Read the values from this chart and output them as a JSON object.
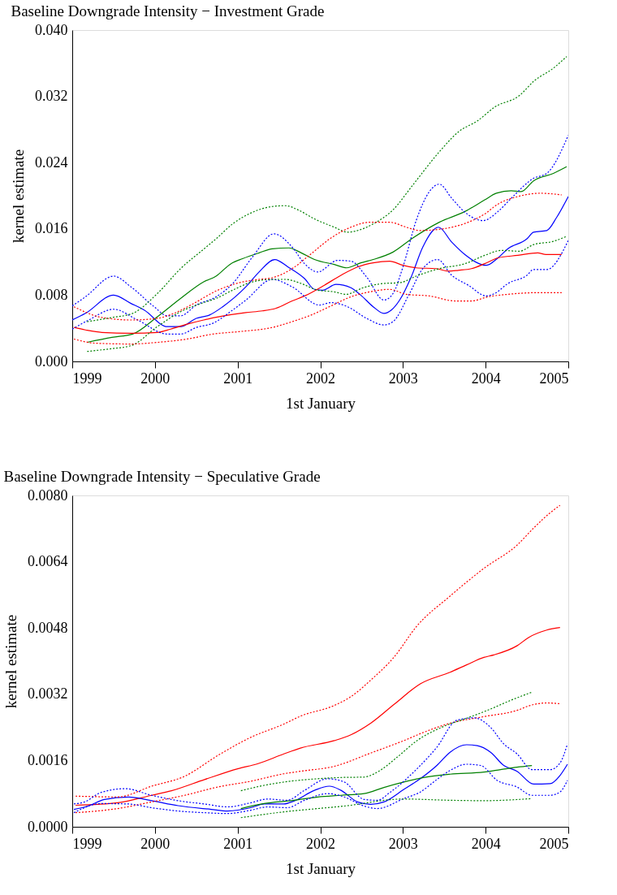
{
  "chart_data": [
    {
      "type": "line",
      "title": "Baseline Downgrade Intensity − Investment Grade",
      "xlabel": "1st January",
      "ylabel": "kernel estimate",
      "xlim": [
        1999,
        2005
      ],
      "xticks": [
        1999,
        2000,
        2001,
        2002,
        2003,
        2004,
        2005
      ],
      "ylim": [
        0,
        0.04
      ],
      "yticks": [
        {
          "value": 0,
          "label": "0.000"
        },
        {
          "value": 0.008,
          "label": "0.008"
        },
        {
          "value": 0.016,
          "label": "0.016"
        },
        {
          "value": 0.024,
          "label": "0.024"
        },
        {
          "value": 0.032,
          "label": "0.032"
        },
        {
          "value": 0.04,
          "label": "0.040"
        }
      ],
      "grid": false,
      "legend": false,
      "marker": "none",
      "series": [
        {
          "color": "#0000ff",
          "line_style": "solid",
          "x": [
            1999.0,
            1999.16,
            1999.5,
            1999.71,
            1999.87,
            2000.15,
            2000.31,
            2000.5,
            2000.66,
            2000.82,
            2001.1,
            2001.26,
            2001.45,
            2001.61,
            2001.81,
            2001.93,
            2002.03,
            2002.19,
            2002.37,
            2002.49,
            2002.64,
            2002.77,
            2002.86,
            2002.96,
            2003.1,
            2003.24,
            2003.43,
            2003.59,
            2003.75,
            2004.01,
            2004.15,
            2004.27,
            2004.5,
            2004.58,
            2004.74,
            2004.86,
            2005.0
          ],
          "values": [
            0.005,
            0.0058,
            0.008,
            0.007,
            0.0062,
            0.0042,
            0.0042,
            0.0052,
            0.0056,
            0.0066,
            0.009,
            0.0108,
            0.0123,
            0.0114,
            0.01,
            0.0087,
            0.0086,
            0.0093,
            0.0089,
            0.008,
            0.0066,
            0.0058,
            0.0062,
            0.0074,
            0.0102,
            0.0138,
            0.0162,
            0.0144,
            0.0129,
            0.0116,
            0.0125,
            0.0136,
            0.0148,
            0.0156,
            0.0158,
            0.0174,
            0.0199
          ]
        },
        {
          "color": "#0000ff",
          "line_style": "dotted",
          "x": [
            1999.0,
            1999.16,
            1999.5,
            1999.71,
            1999.99,
            2000.15,
            2000.31,
            2000.5,
            2000.74,
            2000.94,
            2001.18,
            2001.44,
            2001.66,
            2001.81,
            2001.97,
            2002.21,
            2002.37,
            2002.56,
            2002.77,
            2002.88,
            2003.0,
            2003.16,
            2003.32,
            2003.44,
            2003.59,
            2003.75,
            2003.97,
            2004.15,
            2004.31,
            2004.58,
            2004.74,
            2005.0
          ],
          "values": [
            0.0067,
            0.0078,
            0.0103,
            0.009,
            0.0066,
            0.0055,
            0.0055,
            0.0068,
            0.0078,
            0.0094,
            0.0126,
            0.0154,
            0.0138,
            0.0118,
            0.0108,
            0.0122,
            0.0121,
            0.0102,
            0.0074,
            0.0082,
            0.0114,
            0.017,
            0.0205,
            0.0214,
            0.0197,
            0.018,
            0.017,
            0.0181,
            0.0197,
            0.0221,
            0.0227,
            0.0273
          ]
        },
        {
          "color": "#0000ff",
          "line_style": "dotted",
          "x": [
            1999.0,
            1999.2,
            1999.5,
            1999.79,
            2000.15,
            2000.31,
            2000.5,
            2000.7,
            2000.94,
            2001.1,
            2001.42,
            2001.66,
            2001.99,
            2002.13,
            2002.33,
            2002.56,
            2002.77,
            2002.88,
            2003.08,
            2003.24,
            2003.42,
            2003.59,
            2003.79,
            2004.01,
            2004.11,
            2004.27,
            2004.5,
            2004.58,
            2004.74,
            2005.0
          ],
          "values": [
            0.0039,
            0.005,
            0.0063,
            0.005,
            0.0033,
            0.0033,
            0.0041,
            0.0046,
            0.0062,
            0.0074,
            0.0099,
            0.009,
            0.0068,
            0.0071,
            0.0066,
            0.0052,
            0.0044,
            0.0048,
            0.0082,
            0.0112,
            0.0123,
            0.0104,
            0.0092,
            0.0079,
            0.0082,
            0.0094,
            0.0104,
            0.0111,
            0.0111,
            0.0146
          ]
        },
        {
          "color": "#008000",
          "line_style": "solid",
          "x": [
            1999.18,
            1999.48,
            1999.73,
            2000.03,
            2000.31,
            2000.59,
            2000.74,
            2000.92,
            2001.06,
            2001.26,
            2001.42,
            2001.62,
            2001.77,
            2001.93,
            2002.17,
            2002.32,
            2002.49,
            2002.64,
            2002.88,
            2003.12,
            2003.44,
            2003.75,
            2003.99,
            2004.13,
            2004.31,
            2004.43,
            2004.58,
            2004.82,
            2004.98
          ],
          "values": [
            0.0023,
            0.0029,
            0.0033,
            0.0054,
            0.0076,
            0.0096,
            0.0103,
            0.0118,
            0.0124,
            0.0131,
            0.0136,
            0.0137,
            0.0131,
            0.0123,
            0.0117,
            0.0113,
            0.0119,
            0.0123,
            0.0132,
            0.0149,
            0.0168,
            0.0181,
            0.0195,
            0.0203,
            0.0206,
            0.0205,
            0.0218,
            0.0227,
            0.0235
          ]
        },
        {
          "color": "#008000",
          "line_style": "dotted",
          "x": [
            1999.18,
            1999.48,
            1999.73,
            2000.03,
            2000.31,
            2000.62,
            2000.74,
            2000.94,
            2001.18,
            2001.42,
            2001.58,
            2001.73,
            2001.93,
            2002.17,
            2002.33,
            2002.45,
            2002.64,
            2002.88,
            2003.12,
            2003.44,
            2003.67,
            2003.91,
            2004.11,
            2004.41,
            2004.58,
            2004.82,
            2004.98
          ],
          "values": [
            0.0048,
            0.0053,
            0.0058,
            0.0082,
            0.0112,
            0.0138,
            0.0148,
            0.0166,
            0.018,
            0.0187,
            0.0188,
            0.0183,
            0.0172,
            0.0162,
            0.0156,
            0.0158,
            0.0166,
            0.0183,
            0.0213,
            0.0253,
            0.0277,
            0.0291,
            0.0307,
            0.0321,
            0.0338,
            0.0354,
            0.0368
          ]
        },
        {
          "color": "#008000",
          "line_style": "dotted",
          "x": [
            1999.18,
            1999.44,
            1999.71,
            2000.03,
            2000.31,
            2000.59,
            2000.74,
            2000.94,
            2001.18,
            2001.42,
            2001.58,
            2001.77,
            2001.97,
            2002.17,
            2002.31,
            2002.52,
            2002.76,
            2002.96,
            2003.16,
            2003.44,
            2003.75,
            2003.99,
            2004.19,
            2004.41,
            2004.58,
            2004.82,
            2004.98
          ],
          "values": [
            0.0012,
            0.0015,
            0.0019,
            0.0042,
            0.006,
            0.0071,
            0.0076,
            0.0086,
            0.0096,
            0.0099,
            0.0099,
            0.0094,
            0.0086,
            0.0084,
            0.0081,
            0.0089,
            0.0094,
            0.0095,
            0.0103,
            0.0112,
            0.0118,
            0.0128,
            0.0134,
            0.0133,
            0.0141,
            0.0145,
            0.0151
          ]
        },
        {
          "color": "#ff0000",
          "line_style": "solid",
          "x": [
            1999.02,
            1999.16,
            1999.36,
            1999.71,
            2000.03,
            2000.19,
            2000.39,
            2000.59,
            2000.78,
            2001.1,
            2001.3,
            2001.46,
            2001.66,
            2001.81,
            2002.05,
            2002.25,
            2002.45,
            2002.64,
            2002.84,
            2003.0,
            2003.16,
            2003.4,
            2003.55,
            2003.67,
            2003.83,
            2003.99,
            2004.15,
            2004.39,
            2004.63,
            2004.73,
            2004.92
          ],
          "values": [
            0.0041,
            0.0038,
            0.0035,
            0.0034,
            0.0035,
            0.0039,
            0.0045,
            0.005,
            0.0054,
            0.0059,
            0.0061,
            0.0064,
            0.0073,
            0.0079,
            0.0092,
            0.0104,
            0.0114,
            0.0119,
            0.0121,
            0.0116,
            0.0113,
            0.0112,
            0.0109,
            0.011,
            0.0112,
            0.0118,
            0.0125,
            0.0128,
            0.0131,
            0.0129,
            0.0129
          ]
        },
        {
          "color": "#ff0000",
          "line_style": "dotted",
          "x": [
            1999.02,
            1999.36,
            1999.71,
            2000.03,
            2000.23,
            2000.47,
            2000.74,
            2001.02,
            2001.26,
            2001.42,
            2001.66,
            2001.89,
            2002.13,
            2002.37,
            2002.6,
            2002.84,
            2003.04,
            2003.2,
            2003.48,
            2003.79,
            2003.99,
            2004.15,
            2004.39,
            2004.66,
            2004.92
          ],
          "values": [
            0.0066,
            0.0053,
            0.005,
            0.0052,
            0.0058,
            0.007,
            0.0085,
            0.0095,
            0.0099,
            0.0101,
            0.0112,
            0.013,
            0.0149,
            0.0162,
            0.0168,
            0.0168,
            0.0162,
            0.0158,
            0.016,
            0.0168,
            0.0178,
            0.019,
            0.0199,
            0.0203,
            0.0201
          ]
        },
        {
          "color": "#ff0000",
          "line_style": "dotted",
          "x": [
            1999.02,
            1999.28,
            1999.71,
            2000.03,
            2000.39,
            2000.7,
            2001.02,
            2001.42,
            2001.66,
            2001.89,
            2002.13,
            2002.37,
            2002.6,
            2002.84,
            2003.04,
            2003.32,
            2003.63,
            2003.83,
            2004.03,
            2004.27,
            2004.63,
            2004.92
          ],
          "values": [
            0.0027,
            0.0022,
            0.0021,
            0.0023,
            0.0027,
            0.0033,
            0.0036,
            0.0041,
            0.0048,
            0.0056,
            0.0067,
            0.0078,
            0.0084,
            0.0087,
            0.0081,
            0.0079,
            0.0073,
            0.0073,
            0.0078,
            0.0081,
            0.0083,
            0.0083
          ]
        }
      ]
    },
    {
      "type": "line",
      "title": "Baseline Downgrade Intensity − Speculative Grade",
      "xlabel": "1st January",
      "ylabel": "kernel estimate",
      "xlim": [
        1999,
        2005
      ],
      "xticks": [
        1999,
        2000,
        2001,
        2002,
        2003,
        2004,
        2005
      ],
      "ylim": [
        0,
        0.008
      ],
      "yticks": [
        {
          "value": 0,
          "label": "0.0000"
        },
        {
          "value": 0.0016,
          "label": "0.0016"
        },
        {
          "value": 0.0032,
          "label": "0.0032"
        },
        {
          "value": 0.0048,
          "label": "0.0048"
        },
        {
          "value": 0.0064,
          "label": "0.0064"
        },
        {
          "value": 0.008,
          "label": "0.0080"
        }
      ],
      "grid": false,
      "legend": false,
      "marker": "none",
      "series": [
        {
          "color": "#ff0000",
          "line_style": "solid",
          "x": [
            1999.04,
            1999.55,
            1999.96,
            2000.2,
            2000.6,
            2001.0,
            2001.24,
            2001.56,
            2001.76,
            2002.17,
            2002.37,
            2002.61,
            2002.89,
            2003.21,
            2003.57,
            2003.77,
            2003.98,
            2004.1,
            2004.38,
            2004.52,
            2004.74,
            2004.9
          ],
          "values": [
            0.00052,
            0.00058,
            0.00076,
            0.00087,
            0.00114,
            0.0014,
            0.00152,
            0.00176,
            0.0019,
            0.00208,
            0.00222,
            0.0025,
            0.00295,
            0.00345,
            0.00373,
            0.00391,
            0.00409,
            0.00415,
            0.00437,
            0.00457,
            0.00475,
            0.00481
          ]
        },
        {
          "color": "#ff0000",
          "line_style": "dotted",
          "x": [
            1999.04,
            1999.55,
            1999.96,
            2000.36,
            2000.76,
            2001.16,
            2001.56,
            2001.76,
            2002.17,
            2002.37,
            2002.61,
            2002.89,
            2003.17,
            2003.57,
            2003.98,
            2004.38,
            2004.58,
            2004.78,
            2004.9
          ],
          "values": [
            0.00074,
            0.00072,
            0.00098,
            0.00122,
            0.00172,
            0.00216,
            0.00248,
            0.00267,
            0.00293,
            0.00314,
            0.00354,
            0.00409,
            0.00485,
            0.00557,
            0.00624,
            0.0068,
            0.00721,
            0.00758,
            0.00776
          ]
        },
        {
          "color": "#ff0000",
          "line_style": "dotted",
          "x": [
            1999.04,
            1999.55,
            1999.96,
            2000.36,
            2000.76,
            2001.16,
            2001.56,
            2001.76,
            2002.17,
            2002.61,
            2003.01,
            2003.25,
            2003.57,
            2003.98,
            2004.38,
            2004.54,
            2004.74,
            2004.9
          ],
          "values": [
            0.00034,
            0.00044,
            0.0006,
            0.00076,
            0.00096,
            0.0011,
            0.00128,
            0.00134,
            0.00146,
            0.00178,
            0.00208,
            0.00228,
            0.0025,
            0.00266,
            0.00281,
            0.00293,
            0.00299,
            0.00297
          ]
        },
        {
          "color": "#0000ff",
          "line_style": "solid",
          "x": [
            1999.02,
            1999.19,
            1999.39,
            1999.68,
            1999.96,
            2000.28,
            2000.68,
            2000.88,
            2001.16,
            2001.32,
            2001.56,
            2001.68,
            2001.93,
            2002.11,
            2002.25,
            2002.45,
            2002.61,
            2002.77,
            2003.01,
            2003.21,
            2003.41,
            2003.57,
            2003.77,
            2003.9,
            2004.06,
            2004.22,
            2004.38,
            2004.58,
            2004.78,
            2004.9,
            2004.99
          ],
          "values": [
            0.00042,
            0.0005,
            0.00066,
            0.00072,
            0.00063,
            0.00051,
            0.00042,
            0.00038,
            0.00046,
            0.00055,
            0.00055,
            0.00062,
            0.00088,
            0.00098,
            0.00088,
            0.0006,
            0.00054,
            0.0006,
            0.0009,
            0.00116,
            0.00148,
            0.0018,
            0.00198,
            0.00196,
            0.0018,
            0.00148,
            0.00134,
            0.00103,
            0.00104,
            0.00124,
            0.00151
          ]
        },
        {
          "color": "#0000ff",
          "line_style": "dotted",
          "x": [
            1999.02,
            1999.15,
            1999.35,
            1999.64,
            1999.96,
            2000.28,
            2000.6,
            2000.88,
            2001.16,
            2001.36,
            2001.6,
            2001.81,
            2002.09,
            2002.29,
            2002.53,
            2002.69,
            2002.85,
            2003.17,
            2003.41,
            2003.65,
            2003.86,
            2004.06,
            2004.22,
            2004.38,
            2004.56,
            2004.78,
            2004.9,
            2004.99
          ],
          "values": [
            0.00055,
            0.0006,
            0.00083,
            0.00092,
            0.00076,
            0.00063,
            0.00055,
            0.00048,
            0.00058,
            0.00067,
            0.00064,
            0.00088,
            0.00116,
            0.00108,
            0.00066,
            0.00064,
            0.00084,
            0.0014,
            0.00192,
            0.00257,
            0.00263,
            0.0024,
            0.002,
            0.00176,
            0.00138,
            0.00138,
            0.00154,
            0.002
          ]
        },
        {
          "color": "#0000ff",
          "line_style": "dotted",
          "x": [
            1999.02,
            1999.35,
            1999.68,
            1999.96,
            2000.28,
            2000.6,
            2000.88,
            2001.16,
            2001.36,
            2001.6,
            2001.81,
            2002.09,
            2002.29,
            2002.53,
            2002.69,
            2003.01,
            2003.21,
            2003.41,
            2003.57,
            2003.77,
            2003.94,
            2004.14,
            2004.38,
            2004.56,
            2004.78,
            2004.9,
            2004.99
          ],
          "values": [
            0.00034,
            0.00056,
            0.00055,
            0.00046,
            0.00038,
            0.00034,
            0.00032,
            0.0004,
            0.00048,
            0.00046,
            0.00064,
            0.0008,
            0.00072,
            0.0005,
            0.00044,
            0.00068,
            0.00084,
            0.00114,
            0.00136,
            0.00151,
            0.00148,
            0.00112,
            0.00096,
            0.00076,
            0.00076,
            0.00084,
            0.00112
          ]
        },
        {
          "color": "#008000",
          "line_style": "solid",
          "x": [
            2001.04,
            2001.32,
            2001.64,
            2001.97,
            2002.25,
            2002.53,
            2002.77,
            2003.01,
            2003.25,
            2003.57,
            2003.98,
            2004.18,
            2004.38,
            2004.56
          ],
          "values": [
            0.00044,
            0.00056,
            0.00063,
            0.00072,
            0.00076,
            0.0008,
            0.00095,
            0.00108,
            0.00119,
            0.00127,
            0.00132,
            0.00138,
            0.00144,
            0.00148
          ]
        },
        {
          "color": "#008000",
          "line_style": "dotted",
          "x": [
            2001.04,
            2001.32,
            2001.64,
            2001.97,
            2002.25,
            2002.53,
            2002.69,
            2002.93,
            2003.17,
            2003.49,
            2003.77,
            2004.02,
            2004.3,
            2004.56
          ],
          "values": [
            0.00087,
            0.001,
            0.0011,
            0.00116,
            0.00119,
            0.0012,
            0.00132,
            0.00168,
            0.00208,
            0.00242,
            0.00262,
            0.00281,
            0.00305,
            0.00325
          ]
        },
        {
          "color": "#008000",
          "line_style": "dotted",
          "x": [
            2001.04,
            2001.56,
            2001.97,
            2002.37,
            2002.57,
            2002.77,
            2003.01,
            2003.57,
            2003.98,
            2004.56
          ],
          "values": [
            0.00022,
            0.00036,
            0.00044,
            0.00052,
            0.00058,
            0.00064,
            0.00067,
            0.00064,
            0.00063,
            0.00068
          ]
        }
      ]
    }
  ]
}
